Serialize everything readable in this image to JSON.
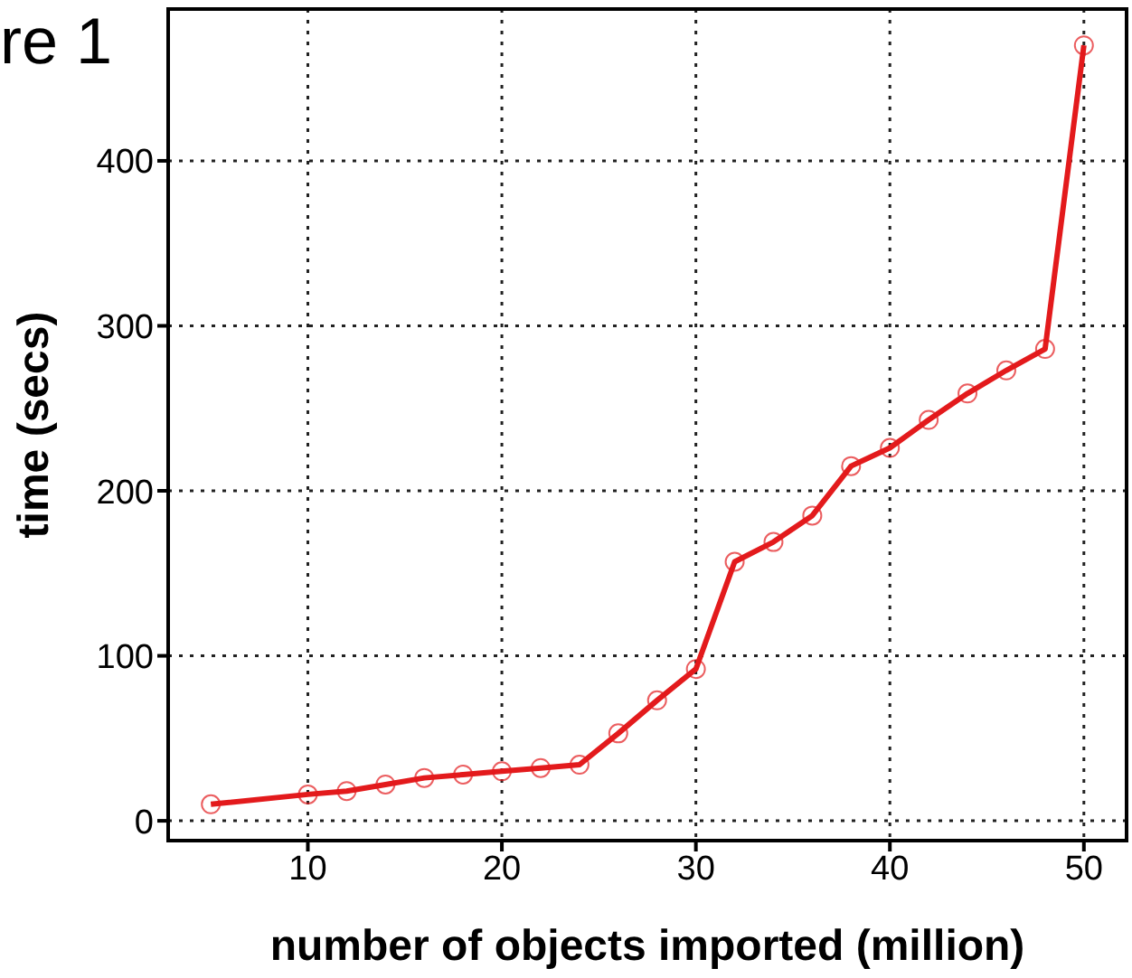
{
  "chart_data": {
    "type": "line",
    "xlabel": "number of objects imported (million)",
    "ylabel": "time (secs)",
    "annotations": [
      "re 1"
    ],
    "x": [
      5,
      10,
      12,
      14,
      16,
      18,
      20,
      22,
      24,
      26,
      28,
      30,
      32,
      34,
      36,
      38,
      40,
      42,
      44,
      46,
      48,
      50
    ],
    "series": [
      {
        "color": "#e31a1c",
        "values": [
          10,
          16,
          18,
          22,
          26,
          28,
          30,
          32,
          34,
          53,
          73,
          92,
          157,
          169,
          185,
          215,
          226,
          243,
          259,
          273,
          286,
          470
        ]
      }
    ],
    "xlim": [
      2.8,
      52.2
    ],
    "xticks": [
      10,
      20,
      30,
      40,
      50
    ],
    "ylim": [
      -12,
      492
    ],
    "yticks": [
      0,
      100,
      200,
      300,
      400
    ],
    "grid": true,
    "marker": "circle",
    "line_style": "solid"
  }
}
